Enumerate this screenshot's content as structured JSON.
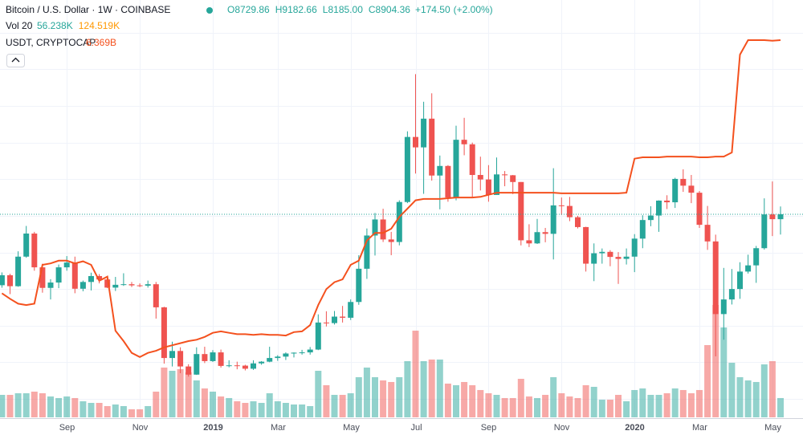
{
  "chart_data": {
    "type": "candlestick",
    "title": "Bitcoin / U.S. Dollar · 1W · COINBASE",
    "quote": {
      "prefixes": [
        "O",
        "H",
        "L",
        "C"
      ],
      "labels": [
        "8729.86",
        "9182.66",
        "8185.00",
        "8904.36"
      ],
      "change": {
        "value": 174.5,
        "label": "+174.50"
      },
      "change_pct": {
        "value": 2,
        "label": "(+2.00%)"
      }
    },
    "categories": [
      null,
      null,
      null,
      null,
      null,
      null,
      null,
      null,
      "Sep",
      null,
      null,
      null,
      null,
      null,
      null,
      null,
      null,
      "Nov",
      null,
      null,
      null,
      null,
      null,
      null,
      null,
      null,
      "2019",
      null,
      null,
      null,
      null,
      null,
      null,
      null,
      "Mar",
      null,
      null,
      null,
      null,
      null,
      null,
      null,
      null,
      "May",
      null,
      null,
      null,
      null,
      null,
      null,
      null,
      "Jul",
      null,
      null,
      null,
      null,
      null,
      null,
      null,
      null,
      "Sep",
      null,
      null,
      null,
      null,
      null,
      null,
      null,
      null,
      "Nov",
      null,
      null,
      null,
      null,
      null,
      null,
      null,
      null,
      "2020",
      null,
      null,
      null,
      null,
      null,
      null,
      null,
      "Mar",
      null,
      null,
      null,
      null,
      null,
      null,
      null,
      null,
      "May",
      null
    ],
    "ohlc": {
      "open": [
        6385,
        6740,
        6350,
        7400,
        8220,
        7020,
        6290,
        6480,
        7020,
        7190,
        6260,
        6500,
        6710,
        6590,
        6300,
        6400,
        6420,
        6380,
        6370,
        6420,
        5600,
        3800,
        4050,
        3500,
        3210,
        3940,
        3690,
        4000,
        3520,
        3540,
        3530,
        3420,
        3610,
        3670,
        3800,
        3850,
        3960,
        3990,
        4000,
        4100,
        5060,
        5040,
        5270,
        5230,
        5790,
        6970,
        8150,
        8720,
        8010,
        7920,
        9340,
        11650,
        11280,
        12300,
        10280,
        10620,
        9500,
        11550,
        11390,
        10300,
        10140,
        9590,
        10320,
        10290,
        10050,
        7980,
        7870,
        8270,
        8210,
        9220,
        9200,
        8800,
        8450,
        7150,
        7520,
        7570,
        7390,
        7320,
        7400,
        8040,
        8700,
        8860,
        9390,
        9330,
        10160,
        9920,
        9670,
        8530,
        7940,
        5360,
        5880,
        6250,
        6870,
        7090,
        7700,
        8900,
        8729.86
      ],
      "high": [
        6840,
        6790,
        7590,
        8490,
        8280,
        7150,
        6600,
        7120,
        7420,
        7400,
        6550,
        6830,
        6780,
        6680,
        6680,
        6810,
        6500,
        6450,
        6550,
        6500,
        5620,
        4380,
        4180,
        3580,
        4180,
        4200,
        4080,
        4100,
        3720,
        3670,
        3560,
        3720,
        3690,
        4200,
        3900,
        4000,
        4000,
        4090,
        4190,
        5350,
        5460,
        5470,
        5650,
        5880,
        7450,
        8400,
        8950,
        9100,
        8280,
        9400,
        11850,
        13880,
        12900,
        13200,
        10990,
        10650,
        12050,
        12330,
        11450,
        10950,
        10650,
        10920,
        10440,
        10300,
        10050,
        8550,
        8740,
        8420,
        10540,
        9500,
        9520,
        8850,
        8460,
        7870,
        7690,
        7630,
        7560,
        7690,
        8200,
        8870,
        9190,
        9400,
        9580,
        10200,
        10500,
        10300,
        9730,
        9200,
        8180,
        7000,
        6960,
        7200,
        7470,
        7780,
        9470,
        10070,
        9182.66
      ],
      "low": [
        6295,
        6070,
        6330,
        7360,
        6900,
        6120,
        5880,
        6280,
        6900,
        6100,
        6170,
        6200,
        6450,
        6280,
        6180,
        6360,
        6320,
        6320,
        6300,
        5200,
        3600,
        3500,
        3260,
        3140,
        3200,
        3620,
        3660,
        3460,
        3470,
        3400,
        3360,
        3380,
        3560,
        3650,
        3700,
        3730,
        3820,
        3920,
        3920,
        4080,
        4920,
        4990,
        5060,
        5150,
        5690,
        6610,
        7440,
        7920,
        7450,
        7800,
        9300,
        10350,
        9630,
        10100,
        9080,
        9350,
        9400,
        11000,
        9500,
        9750,
        9350,
        9590,
        9900,
        9620,
        7800,
        7740,
        7850,
        7910,
        7300,
        8880,
        8660,
        8400,
        6870,
        6530,
        7150,
        7060,
        6430,
        7120,
        6850,
        7700,
        8480,
        8280,
        9090,
        9130,
        9700,
        9300,
        8420,
        7640,
        3860,
        4450,
        5700,
        5900,
        6800,
        6470,
        7650,
        8130,
        8185
      ],
      "close": [
        6740,
        6350,
        7400,
        8220,
        7020,
        6290,
        6480,
        7020,
        7190,
        6260,
        6500,
        6710,
        6590,
        6300,
        6400,
        6420,
        6380,
        6370,
        6420,
        5600,
        3800,
        4050,
        3500,
        3210,
        3940,
        3690,
        4000,
        3520,
        3540,
        3530,
        3420,
        3610,
        3670,
        3800,
        3850,
        3960,
        3990,
        4000,
        4100,
        5060,
        5040,
        5270,
        5230,
        5790,
        6970,
        8150,
        8720,
        8010,
        7920,
        9340,
        11650,
        11280,
        12300,
        10280,
        10620,
        9500,
        11550,
        11390,
        10300,
        10140,
        9590,
        10320,
        10290,
        10050,
        7980,
        7870,
        8270,
        8210,
        9220,
        9200,
        8800,
        8450,
        7150,
        7520,
        7570,
        7390,
        7320,
        7400,
        8040,
        8700,
        8860,
        9390,
        9330,
        10160,
        9920,
        9670,
        8530,
        7940,
        5360,
        5880,
        6250,
        6870,
        7090,
        7700,
        8900,
        8730,
        8904.36
      ]
    },
    "up_color": "#26a69a",
    "down_color": "#ef5350",
    "ylim": [
      1693.5,
      16513.5
    ],
    "ygrid": [
      15350,
      14050,
      12750,
      11450,
      10150,
      8850,
      7550,
      6250,
      4950,
      3650,
      2350
    ],
    "grid": true,
    "volume": {
      "name": "Vol 20",
      "values": [
        65500,
        65500,
        70200,
        70200,
        74900,
        70200,
        60800,
        56200,
        60800,
        56200,
        46800,
        42100,
        42100,
        32800,
        37400,
        32800,
        23400,
        23400,
        32800,
        74900,
        145100,
        135700,
        140400,
        131000,
        107600,
        84200,
        74900,
        60800,
        56200,
        46800,
        42100,
        46800,
        42100,
        70200,
        46800,
        42100,
        37400,
        37400,
        32800,
        135700,
        93600,
        65500,
        65500,
        70200,
        117000,
        145100,
        117000,
        107600,
        103000,
        117000,
        163800,
        252700,
        163800,
        168500,
        168500,
        98300,
        93600,
        103000,
        93600,
        79600,
        70200,
        65500,
        56200,
        56200,
        112300,
        60800,
        56200,
        65500,
        117000,
        70200,
        60800,
        56200,
        93600,
        88900,
        51500,
        51500,
        65500,
        46800,
        79600,
        84200,
        65500,
        65500,
        70200,
        84200,
        79600,
        70200,
        79600,
        210600,
        327600,
        262100,
        159100,
        117000,
        107600,
        103000,
        154400,
        163800,
        56238
      ],
      "value_labels": [
        null,
        null,
        null,
        null,
        null,
        null,
        null,
        null,
        null,
        null,
        null,
        null,
        null,
        null,
        null,
        null,
        null,
        null,
        null,
        null,
        null,
        null,
        null,
        null,
        null,
        null,
        null,
        null,
        null,
        null,
        null,
        null,
        null,
        null,
        null,
        null,
        null,
        null,
        null,
        null,
        null,
        null,
        null,
        null,
        null,
        null,
        null,
        null,
        null,
        null,
        null,
        null,
        null,
        null,
        null,
        null,
        null,
        null,
        null,
        null,
        null,
        null,
        null,
        null,
        null,
        null,
        null,
        null,
        null,
        null,
        null,
        null,
        null,
        null,
        null,
        null,
        null,
        null,
        null,
        null,
        null,
        null,
        null,
        null,
        null,
        null,
        null,
        null,
        null,
        null,
        null,
        null,
        null,
        null,
        null,
        null,
        "56.238K"
      ],
      "ma": {
        "value": 124519,
        "label": "124.519K"
      },
      "ylim": [
        0,
        1216800
      ]
    },
    "overlay": {
      "name": "USDT, CRYPTOCAP",
      "color": "#f4511e",
      "values": [
        2720000000.0,
        2640000000.0,
        2570000000.0,
        2550000000.0,
        2570000000.0,
        3130000000.0,
        3150000000.0,
        3190000000.0,
        3190000000.0,
        3150000000.0,
        3180000000.0,
        3130000000.0,
        2900000000.0,
        2960000000.0,
        2180000000.0,
        2030000000.0,
        1860000000.0,
        1800000000.0,
        1860000000.0,
        1890000000.0,
        1940000000.0,
        1970000000.0,
        2000000000.0,
        2030000000.0,
        2050000000.0,
        2090000000.0,
        2150000000.0,
        2170000000.0,
        2150000000.0,
        2130000000.0,
        2130000000.0,
        2120000000.0,
        2130000000.0,
        2120000000.0,
        2120000000.0,
        2110000000.0,
        2160000000.0,
        2170000000.0,
        2260000000.0,
        2550000000.0,
        2780000000.0,
        2880000000.0,
        2920000000.0,
        3130000000.0,
        3190000000.0,
        3480000000.0,
        3590000000.0,
        3590000000.0,
        3650000000.0,
        3820000000.0,
        3940000000.0,
        4060000000.0,
        4080000000.0,
        4080000000.0,
        4080000000.0,
        4090000000.0,
        4100000000.0,
        4100000000.0,
        4100000000.0,
        4110000000.0,
        4140000000.0,
        4170000000.0,
        4170000000.0,
        4170000000.0,
        4170000000.0,
        4170000000.0,
        4170000000.0,
        4170000000.0,
        4170000000.0,
        4160000000.0,
        4160000000.0,
        4160000000.0,
        4160000000.0,
        4160000000.0,
        4160000000.0,
        4160000000.0,
        4160000000.0,
        4170000000.0,
        4660000000.0,
        4680000000.0,
        4680000000.0,
        4680000000.0,
        4690000000.0,
        4690000000.0,
        4690000000.0,
        4690000000.0,
        4680000000.0,
        4680000000.0,
        4690000000.0,
        4690000000.0,
        4750000000.0,
        6160000000.0,
        6370000000.0,
        6370000000.0,
        6370000000.0,
        6360000000.0,
        6369000000.0
      ],
      "value_labels": [
        null,
        null,
        null,
        null,
        null,
        null,
        null,
        null,
        null,
        null,
        null,
        null,
        null,
        null,
        null,
        null,
        null,
        null,
        null,
        null,
        null,
        null,
        null,
        null,
        null,
        null,
        null,
        null,
        null,
        null,
        null,
        null,
        null,
        null,
        null,
        null,
        null,
        null,
        null,
        null,
        null,
        null,
        null,
        null,
        null,
        null,
        null,
        null,
        null,
        null,
        null,
        null,
        null,
        null,
        null,
        null,
        null,
        null,
        null,
        null,
        null,
        null,
        null,
        null,
        null,
        null,
        null,
        null,
        null,
        null,
        null,
        null,
        null,
        null,
        null,
        null,
        null,
        null,
        null,
        null,
        null,
        null,
        null,
        null,
        null,
        null,
        null,
        null,
        null,
        null,
        null,
        null,
        null,
        null,
        null,
        null,
        "6.369B"
      ],
      "ylim": [
        931000000.0,
        6948000000.0
      ]
    }
  }
}
